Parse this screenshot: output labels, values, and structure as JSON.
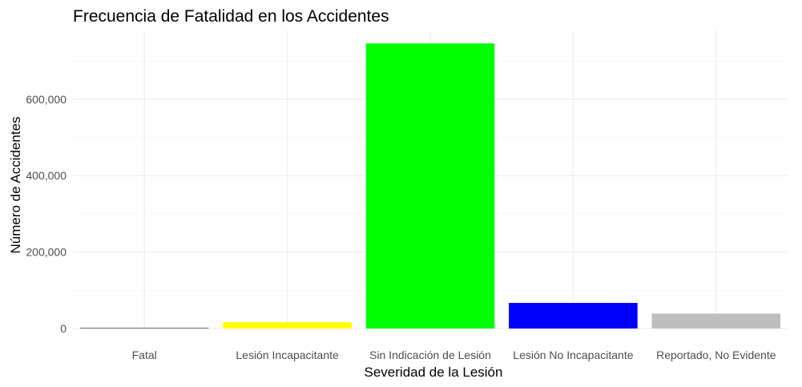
{
  "chart_data": {
    "type": "bar",
    "title": "Frecuencia de Fatalidad en los Accidentes",
    "xlabel": "Severidad de la Lesión",
    "ylabel": "Número de Accidentes",
    "categories": [
      "Fatal",
      "Lesión Incapacitante",
      "Sin Indicación de Lesión",
      "Lesión No Incapacitante",
      "Reportado, No Evidente"
    ],
    "values": [
      1200,
      16500,
      746000,
      67000,
      39000
    ],
    "colors": [
      "#000000",
      "#ffff00",
      "#00ff00",
      "#0000ff",
      "#bebebe"
    ],
    "yticks": [
      0,
      200000,
      400000,
      600000
    ],
    "ytick_labels": [
      "0",
      "200,000",
      "400,000",
      "600,000"
    ],
    "ylim": [
      0,
      780000
    ],
    "grid": true,
    "legend": "none"
  }
}
